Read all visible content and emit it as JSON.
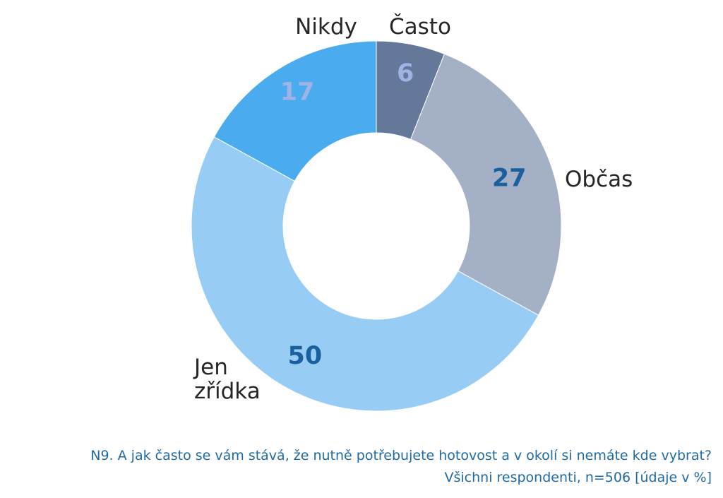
{
  "chart_data": {
    "type": "pie",
    "donut": true,
    "categories": [
      "Často",
      "Občas",
      "Jen zřídka",
      "Nikdy"
    ],
    "label_lines": [
      [
        "Často"
      ],
      [
        "Občas"
      ],
      [
        "Jen",
        "zřídka"
      ],
      [
        "Nikdy"
      ]
    ],
    "values": [
      6,
      27,
      50,
      17
    ],
    "colors": [
      "#64789a",
      "#a3b0c6",
      "#97cdf4",
      "#4aabef"
    ],
    "value_label_colors": [
      "#9fb3e4",
      "#1a5f9e",
      "#1a5f9e",
      "#9fb3e4"
    ],
    "start": "top, clockwise",
    "legend": "none (category labels placed next to slices)"
  },
  "footnote": {
    "question": "N9. A jak často se vám stává, že nutně potřebujete hotovost a v okolí si nemáte kde vybrat?",
    "base": "Všichni respondenti, n=506 [údaje v %]"
  }
}
